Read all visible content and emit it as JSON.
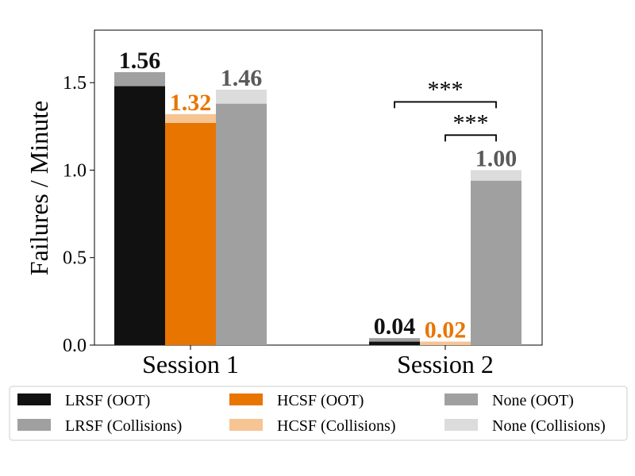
{
  "chart_data": {
    "type": "bar",
    "stacked": true,
    "categories": [
      "Session 1",
      "Session 2"
    ],
    "ylabel": "Failures / Minute",
    "ylim": [
      0,
      1.8
    ],
    "yticks": [
      "0.0",
      "0.5",
      "1.0",
      "1.5"
    ],
    "ytick_values": [
      0.0,
      0.5,
      1.0,
      1.5
    ],
    "groups": [
      {
        "name": "LRSF",
        "oot": [
          1.48,
          0.02
        ],
        "collisions": [
          0.08,
          0.02
        ],
        "totals": [
          "1.56",
          "0.04"
        ],
        "oot_color": "#111111",
        "collisions_color": "#a0a0a0",
        "label_color": "#111111"
      },
      {
        "name": "HCSF",
        "oot": [
          1.27,
          0.0
        ],
        "collisions": [
          0.05,
          0.02
        ],
        "totals": [
          "1.32",
          "0.02"
        ],
        "oot_color": "#e87500",
        "collisions_color": "#f7c494",
        "label_color": "#e87500"
      },
      {
        "name": "None",
        "oot": [
          1.38,
          0.94
        ],
        "collisions": [
          0.08,
          0.06
        ],
        "totals": [
          "1.46",
          "1.00"
        ],
        "oot_color": "#a0a0a0",
        "collisions_color": "#dcdcdc",
        "label_color": "#5a5a5a"
      }
    ],
    "significance": [
      {
        "category": "Session 2",
        "from": "LRSF",
        "to": "None",
        "label": "***",
        "y": 1.39
      },
      {
        "category": "Session 2",
        "from": "HCSF",
        "to": "None",
        "label": "***",
        "y": 1.2
      }
    ],
    "legend": {
      "position": "bottom",
      "entries": [
        {
          "label": "LRSF (OOT)",
          "color": "#111111"
        },
        {
          "label": "LRSF (Collisions)",
          "color": "#a0a0a0"
        },
        {
          "label": "HCSF (OOT)",
          "color": "#e87500"
        },
        {
          "label": "HCSF (Collisions)",
          "color": "#f7c494"
        },
        {
          "label": "None (OOT)",
          "color": "#a0a0a0"
        },
        {
          "label": "None (Collisions)",
          "color": "#dcdcdc"
        }
      ]
    }
  }
}
